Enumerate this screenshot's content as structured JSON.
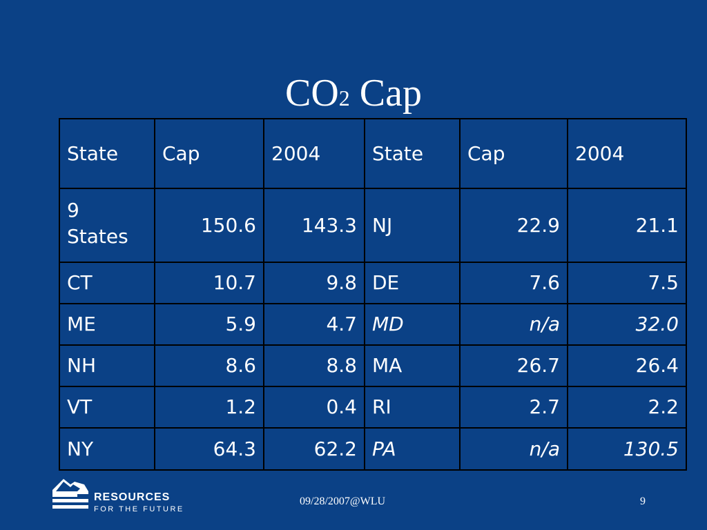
{
  "title": {
    "main": "CO",
    "sub": "2",
    "rest": " Cap"
  },
  "table": {
    "headers": [
      "State",
      "Cap",
      "2004",
      "State",
      "Cap",
      "2004"
    ],
    "rows": [
      {
        "s1": "9 States",
        "c1": "150.6",
        "y1": "143.3",
        "s2": "NJ",
        "c2": "22.9",
        "y2": "21.1",
        "italic": false
      },
      {
        "s1": "CT",
        "c1": "10.7",
        "y1": "9.8",
        "s2": "DE",
        "c2": "7.6",
        "y2": "7.5",
        "italic": false
      },
      {
        "s1": "ME",
        "c1": "5.9",
        "y1": "4.7",
        "s2": "MD",
        "c2": "n/a",
        "y2": "32.0",
        "italic": true
      },
      {
        "s1": "NH",
        "c1": "8.6",
        "y1": "8.8",
        "s2": "MA",
        "c2": "26.7",
        "y2": "26.4",
        "italic": false
      },
      {
        "s1": "VT",
        "c1": "1.2",
        "y1": "0.4",
        "s2": "RI",
        "c2": "2.7",
        "y2": "2.2",
        "italic": false
      },
      {
        "s1": "NY",
        "c1": "64.3",
        "y1": "62.2",
        "s2": "PA",
        "c2": "n/a",
        "y2": "130.5",
        "italic": true
      }
    ]
  },
  "footer": {
    "date": "09/28/2007@WLU",
    "page": "9"
  },
  "logo": {
    "line1": "RESOURCES",
    "line2": "FOR THE FUTURE"
  },
  "colors": {
    "background": "#0b4186",
    "border": "#000000",
    "text": "#ffffff"
  }
}
